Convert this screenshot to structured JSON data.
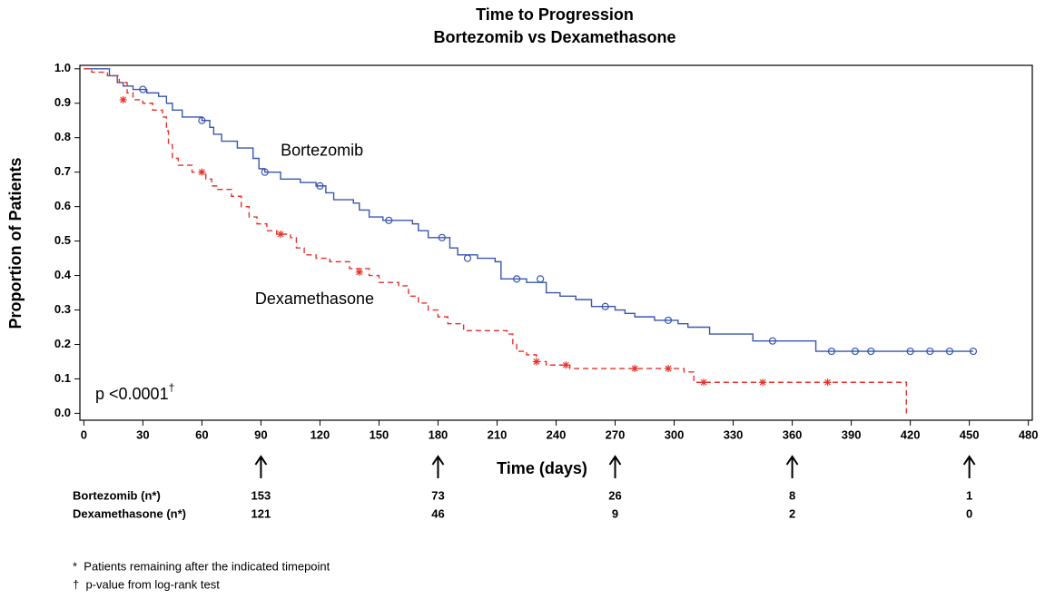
{
  "chart_data": {
    "type": "kaplan-meier",
    "title": "Time to Progression",
    "subtitle": "Bortezomib vs Dexamethasone",
    "x_label": "Time (days)",
    "y_label": "Proportion of Patients",
    "xlim": [
      -2,
      482
    ],
    "ylim": [
      -0.02,
      1.01
    ],
    "xticks": [
      0,
      30,
      60,
      90,
      120,
      150,
      180,
      210,
      240,
      270,
      300,
      330,
      360,
      390,
      420,
      450,
      480
    ],
    "yticks": [
      {
        "value": 0,
        "label": "0.0"
      },
      0.1,
      0.2,
      0.3,
      0.4,
      0.5,
      0.6,
      0.7,
      0.8,
      0.9,
      {
        "value": 1,
        "label": "1.0"
      }
    ],
    "series": [
      {
        "name": "Bortezomib",
        "color": "#3a56b0",
        "dashed": false,
        "marker": "circle",
        "label_x": 100,
        "label_y": 0.76,
        "x": [
          0,
          10,
          13,
          17,
          20,
          25,
          32,
          38,
          42,
          45,
          50,
          60,
          64,
          66,
          70,
          78,
          86,
          89,
          92,
          100,
          110,
          118,
          123,
          127,
          137,
          140,
          145,
          152,
          167,
          170,
          175,
          186,
          190,
          200,
          209,
          212,
          225,
          235,
          242,
          250,
          258,
          270,
          275,
          280,
          290,
          302,
          307,
          318,
          340,
          372,
          452
        ],
        "values": [
          1.0,
          1.0,
          0.98,
          0.96,
          0.95,
          0.94,
          0.93,
          0.92,
          0.9,
          0.88,
          0.86,
          0.85,
          0.83,
          0.81,
          0.79,
          0.77,
          0.74,
          0.71,
          0.7,
          0.68,
          0.67,
          0.66,
          0.64,
          0.62,
          0.61,
          0.59,
          0.57,
          0.56,
          0.55,
          0.53,
          0.51,
          0.48,
          0.46,
          0.45,
          0.44,
          0.39,
          0.38,
          0.35,
          0.34,
          0.33,
          0.31,
          0.3,
          0.29,
          0.28,
          0.27,
          0.26,
          0.25,
          0.23,
          0.21,
          0.18,
          0.18
        ],
        "censored": {
          "x": [
            30,
            60,
            92,
            120,
            155,
            182,
            195,
            220,
            232,
            265,
            297,
            350,
            380,
            392,
            400,
            420,
            430,
            440,
            452
          ],
          "values": [
            0.94,
            0.85,
            0.7,
            0.66,
            0.56,
            0.51,
            0.45,
            0.39,
            0.39,
            0.31,
            0.27,
            0.21,
            0.18,
            0.18,
            0.18,
            0.18,
            0.18,
            0.18,
            0.18
          ]
        }
      },
      {
        "name": "Dexamethasone",
        "color": "#e8312a",
        "dashed": true,
        "marker": "star",
        "label_x": 87,
        "label_y": 0.33,
        "x": [
          0,
          4,
          12,
          18,
          22,
          25,
          30,
          35,
          40,
          42,
          43,
          45,
          48,
          55,
          62,
          65,
          68,
          75,
          80,
          84,
          88,
          93,
          98,
          105,
          108,
          112,
          118,
          125,
          135,
          145,
          150,
          160,
          165,
          170,
          175,
          180,
          185,
          193,
          215,
          218,
          220,
          225,
          230,
          235,
          247,
          305,
          310,
          418,
          418
        ],
        "values": [
          1.0,
          0.99,
          0.98,
          0.96,
          0.93,
          0.91,
          0.9,
          0.88,
          0.86,
          0.82,
          0.78,
          0.74,
          0.72,
          0.7,
          0.68,
          0.66,
          0.65,
          0.63,
          0.6,
          0.57,
          0.55,
          0.53,
          0.52,
          0.51,
          0.48,
          0.46,
          0.45,
          0.44,
          0.42,
          0.4,
          0.38,
          0.37,
          0.34,
          0.32,
          0.3,
          0.28,
          0.26,
          0.24,
          0.23,
          0.2,
          0.18,
          0.17,
          0.15,
          0.14,
          0.13,
          0.12,
          0.09,
          0.09,
          0.0
        ],
        "censored": {
          "x": [
            20,
            60,
            100,
            140,
            230,
            245,
            280,
            297,
            315,
            345,
            378
          ],
          "values": [
            0.91,
            0.7,
            0.52,
            0.41,
            0.15,
            0.14,
            0.13,
            0.13,
            0.09,
            0.09,
            0.09
          ]
        }
      }
    ],
    "p_value": "p <0.0001",
    "p_value_mark": "†",
    "at_risk": {
      "timepoints": [
        90,
        180,
        270,
        360,
        450
      ],
      "rows": [
        {
          "label": "Bortezomib (n*)",
          "values": [
            153,
            73,
            26,
            8,
            1
          ]
        },
        {
          "label": "Dexamethasone (n*)",
          "values": [
            121,
            46,
            9,
            2,
            0
          ]
        }
      ]
    },
    "footnotes": [
      "*  Patients remaining after the indicated timepoint",
      "†  p-value from log-rank test"
    ]
  }
}
